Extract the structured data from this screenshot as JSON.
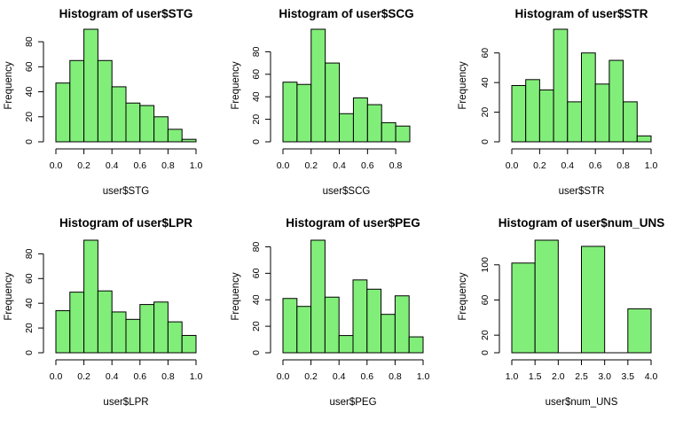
{
  "colors": {
    "bar_fill": "#82ee7a",
    "bar_stroke": "#000000"
  },
  "chart_data": [
    {
      "type": "bar",
      "title": "Histogram of user$STG",
      "xlabel": "user$STG",
      "ylabel": "Frequency",
      "bins": [
        [
          0.0,
          0.1
        ],
        [
          0.1,
          0.2
        ],
        [
          0.2,
          0.3
        ],
        [
          0.3,
          0.4
        ],
        [
          0.4,
          0.5
        ],
        [
          0.5,
          0.6
        ],
        [
          0.6,
          0.7
        ],
        [
          0.7,
          0.8
        ],
        [
          0.8,
          0.9
        ],
        [
          0.9,
          1.0
        ]
      ],
      "values": [
        47,
        65,
        90,
        65,
        44,
        31,
        29,
        20,
        10,
        2
      ],
      "xlim": [
        0.0,
        1.0
      ],
      "ylim": [
        0,
        90
      ],
      "xticks": [
        0.0,
        0.2,
        0.4,
        0.6,
        0.8,
        1.0
      ],
      "xtick_labels": [
        "0.0",
        "0.2",
        "0.4",
        "0.6",
        "0.8",
        "1.0"
      ],
      "yticks": [
        0,
        20,
        40,
        60,
        80
      ],
      "ytick_labels": [
        "0",
        "20",
        "40",
        "60",
        "80"
      ]
    },
    {
      "type": "bar",
      "title": "Histogram of user$SCG",
      "xlabel": "user$SCG",
      "ylabel": "Frequency",
      "bins": [
        [
          0.0,
          0.1
        ],
        [
          0.1,
          0.2
        ],
        [
          0.2,
          0.3
        ],
        [
          0.3,
          0.4
        ],
        [
          0.4,
          0.5
        ],
        [
          0.5,
          0.6
        ],
        [
          0.6,
          0.7
        ],
        [
          0.7,
          0.8
        ],
        [
          0.8,
          0.9
        ]
      ],
      "values": [
        53,
        51,
        100,
        70,
        25,
        39,
        33,
        17,
        14
      ],
      "xlim": [
        0.0,
        0.9
      ],
      "ylim": [
        0,
        100
      ],
      "xticks": [
        0.0,
        0.2,
        0.4,
        0.6,
        0.8
      ],
      "xtick_labels": [
        "0.0",
        "0.2",
        "0.4",
        "0.6",
        "0.8"
      ],
      "yticks": [
        0,
        20,
        40,
        60,
        80
      ],
      "ytick_labels": [
        "0",
        "20",
        "40",
        "60",
        "80"
      ]
    },
    {
      "type": "bar",
      "title": "Histogram of user$STR",
      "xlabel": "user$STR",
      "ylabel": "Frequency",
      "bins": [
        [
          0.0,
          0.1
        ],
        [
          0.1,
          0.2
        ],
        [
          0.2,
          0.3
        ],
        [
          0.3,
          0.4
        ],
        [
          0.4,
          0.5
        ],
        [
          0.5,
          0.6
        ],
        [
          0.6,
          0.7
        ],
        [
          0.7,
          0.8
        ],
        [
          0.8,
          0.9
        ],
        [
          0.9,
          1.0
        ]
      ],
      "values": [
        38,
        42,
        35,
        76,
        27,
        60,
        39,
        55,
        27,
        4
      ],
      "xlim": [
        0.0,
        1.0
      ],
      "ylim": [
        0,
        76
      ],
      "xticks": [
        0.0,
        0.2,
        0.4,
        0.6,
        0.8,
        1.0
      ],
      "xtick_labels": [
        "0.0",
        "0.2",
        "0.4",
        "0.6",
        "0.8",
        "1.0"
      ],
      "yticks": [
        0,
        20,
        40,
        60
      ],
      "ytick_labels": [
        "0",
        "20",
        "40",
        "60"
      ]
    },
    {
      "type": "bar",
      "title": "Histogram of user$LPR",
      "xlabel": "user$LPR",
      "ylabel": "Frequency",
      "bins": [
        [
          0.0,
          0.1
        ],
        [
          0.1,
          0.2
        ],
        [
          0.2,
          0.3
        ],
        [
          0.3,
          0.4
        ],
        [
          0.4,
          0.5
        ],
        [
          0.5,
          0.6
        ],
        [
          0.6,
          0.7
        ],
        [
          0.7,
          0.8
        ],
        [
          0.8,
          0.9
        ],
        [
          0.9,
          1.0
        ]
      ],
      "values": [
        34,
        49,
        91,
        50,
        33,
        27,
        39,
        41,
        25,
        14
      ],
      "xlim": [
        0.0,
        1.0
      ],
      "ylim": [
        0,
        91
      ],
      "xticks": [
        0.0,
        0.2,
        0.4,
        0.6,
        0.8,
        1.0
      ],
      "xtick_labels": [
        "0.0",
        "0.2",
        "0.4",
        "0.6",
        "0.8",
        "1.0"
      ],
      "yticks": [
        0,
        20,
        40,
        60,
        80
      ],
      "ytick_labels": [
        "0",
        "20",
        "40",
        "60",
        "80"
      ]
    },
    {
      "type": "bar",
      "title": "Histogram of user$PEG",
      "xlabel": "user$PEG",
      "ylabel": "Frequency",
      "bins": [
        [
          0.0,
          0.1
        ],
        [
          0.1,
          0.2
        ],
        [
          0.2,
          0.3
        ],
        [
          0.3,
          0.4
        ],
        [
          0.4,
          0.5
        ],
        [
          0.5,
          0.6
        ],
        [
          0.6,
          0.7
        ],
        [
          0.7,
          0.8
        ],
        [
          0.8,
          0.9
        ],
        [
          0.9,
          1.0
        ]
      ],
      "values": [
        41,
        35,
        85,
        42,
        13,
        55,
        48,
        29,
        43,
        12
      ],
      "xlim": [
        0.0,
        1.0
      ],
      "ylim": [
        0,
        85
      ],
      "xticks": [
        0.0,
        0.2,
        0.4,
        0.6,
        0.8,
        1.0
      ],
      "xtick_labels": [
        "0.0",
        "0.2",
        "0.4",
        "0.6",
        "0.8",
        "1.0"
      ],
      "yticks": [
        0,
        20,
        40,
        60,
        80
      ],
      "ytick_labels": [
        "0",
        "20",
        "40",
        "60",
        "80"
      ]
    },
    {
      "type": "bar",
      "title": "Histogram of user$num_UNS",
      "xlabel": "user$num_UNS",
      "ylabel": "Frequency",
      "bins": [
        [
          1.0,
          1.5
        ],
        [
          1.5,
          2.0
        ],
        [
          2.0,
          2.5
        ],
        [
          2.5,
          3.0
        ],
        [
          3.0,
          3.5
        ],
        [
          3.5,
          4.0
        ]
      ],
      "values": [
        102,
        128,
        0,
        121,
        0,
        50
      ],
      "xlim": [
        1.0,
        4.0
      ],
      "ylim": [
        0,
        128
      ],
      "xticks": [
        1.0,
        1.5,
        2.0,
        2.5,
        3.0,
        3.5,
        4.0
      ],
      "xtick_labels": [
        "1.0",
        "1.5",
        "2.0",
        "2.5",
        "3.0",
        "3.5",
        "4.0"
      ],
      "yticks": [
        0,
        20,
        60,
        100
      ],
      "ytick_labels": [
        "0",
        "20",
        "60",
        "100"
      ]
    }
  ]
}
